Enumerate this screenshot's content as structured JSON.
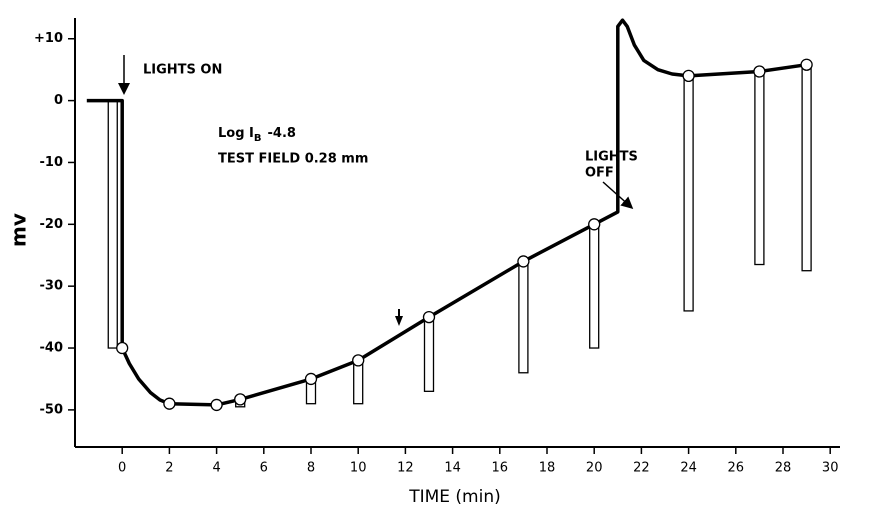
{
  "chart_data": {
    "type": "line",
    "x_label": "TIME (min)",
    "y_label": "mv",
    "xlim": [
      -2,
      30.5
    ],
    "ylim": [
      -56,
      14
    ],
    "xticks": [
      0,
      2,
      4,
      6,
      8,
      10,
      12,
      14,
      16,
      18,
      20,
      22,
      24,
      26,
      28,
      30
    ],
    "yticks": [
      {
        "value": 10,
        "label": "+10"
      },
      0,
      -10,
      -20,
      -30,
      -40,
      -50
    ],
    "color": "#000000",
    "curve": {
      "x": [
        -1.5,
        0,
        0,
        0.3,
        0.7,
        1.2,
        1.6,
        2,
        4,
        5,
        8,
        10,
        13,
        17,
        20,
        21,
        21,
        21.2,
        21.4,
        21.7,
        22.1,
        22.7,
        23.3,
        24,
        27,
        29
      ],
      "y": [
        0,
        0,
        -40,
        -42.5,
        -45,
        -47.2,
        -48.4,
        -49,
        -49.2,
        -48.3,
        -45,
        -42,
        -35,
        -26,
        -20,
        -18,
        12,
        13,
        12,
        9,
        6.5,
        5,
        4.3,
        4,
        4.7,
        5.8
      ]
    },
    "points": {
      "x": [
        0,
        2,
        4,
        5,
        8,
        10,
        13,
        17,
        20,
        24,
        27,
        29
      ],
      "y": [
        -40,
        -49,
        -49.2,
        -48.3,
        -45,
        -42,
        -35,
        -26,
        -20,
        4,
        4.7,
        5.8
      ]
    },
    "bars": {
      "x": [
        -0.4,
        5,
        8,
        10,
        13,
        17,
        20,
        24,
        27,
        29
      ],
      "top": [
        0,
        -48.3,
        -45,
        -42,
        -35,
        -26,
        -20,
        4,
        4.7,
        5.8
      ],
      "bottom": [
        -40,
        -49.5,
        -49,
        -49,
        -47,
        -44,
        -40,
        -34,
        -26.5,
        -27.5
      ]
    },
    "annotations": {
      "lights_on": "LIGHTS ON",
      "log_ib": {
        "text": "Log I",
        "sub": "B",
        "rest": "-4.8"
      },
      "test_field": "TEST FIELD 0.28 mm",
      "lights_off": [
        "LIGHTS",
        "OFF"
      ]
    }
  }
}
